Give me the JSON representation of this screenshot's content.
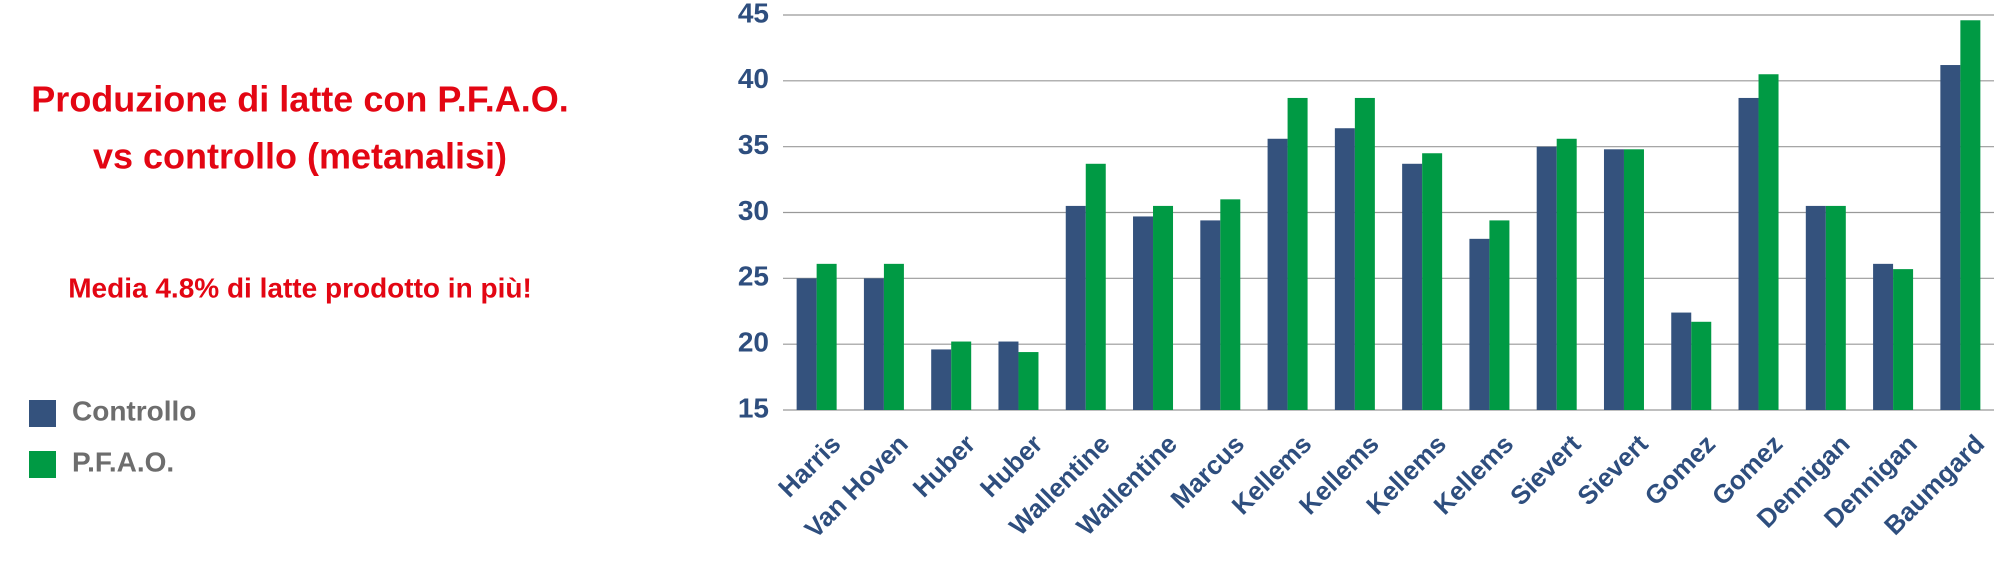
{
  "chart_data": {
    "type": "bar",
    "title": [
      "Produzione di latte con P.F.A.O.",
      "vs controllo (metanalisi)"
    ],
    "subtitle": "Media 4.8% di latte prodotto in più!",
    "categories": [
      "Harris",
      "Van Hoven",
      "Huber",
      "Huber",
      "Wallentine",
      "Wallentine",
      "Marcus",
      "Kellems",
      "Kellems",
      "Kellems",
      "Kellems",
      "Sievert",
      "Sievert",
      "Gomez",
      "Gomez",
      "Dennigan",
      "Dennigan",
      "Baumgard"
    ],
    "series": [
      {
        "name": "Controllo",
        "color": "#34527d",
        "values": [
          25,
          25,
          19.6,
          20.2,
          30.5,
          29.7,
          29.4,
          35.6,
          36.4,
          33.7,
          28,
          35,
          34.8,
          22.4,
          38.7,
          30.5,
          26.1,
          41.2
        ]
      },
      {
        "name": "P.F.A.O.",
        "color": "#009a44",
        "values": [
          26.1,
          26.1,
          20.2,
          19.4,
          33.7,
          30.5,
          31,
          38.7,
          38.7,
          34.5,
          29.4,
          35.6,
          34.8,
          21.7,
          40.5,
          30.5,
          25.7,
          44.6
        ]
      }
    ],
    "ylim": [
      15,
      45
    ],
    "yticks": [
      15,
      20,
      25,
      30,
      35,
      40,
      45
    ],
    "grid": true,
    "legend": "left"
  }
}
